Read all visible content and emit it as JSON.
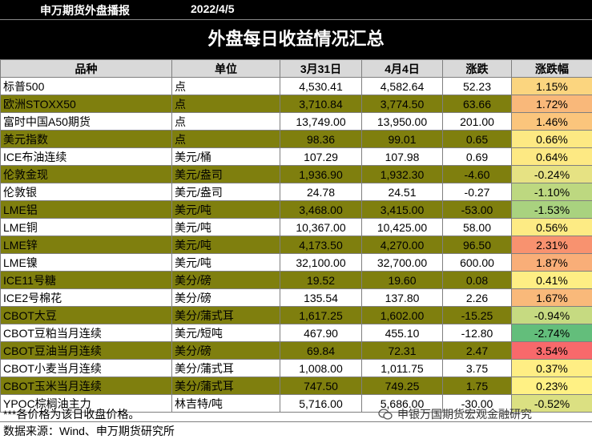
{
  "header": {
    "brand": "申万期货外盘播报",
    "date": "2022/4/5"
  },
  "title": "外盘每日收益情况汇总",
  "columns": [
    "品种",
    "单位",
    "3月31日",
    "4月4日",
    "涨跌",
    "涨跌幅"
  ],
  "rows": [
    {
      "name": "标普500",
      "unit": "点",
      "prev": "4,530.41",
      "curr": "4,582.64",
      "chg": "52.23",
      "pct": "1.15%",
      "color": "#fbd57f"
    },
    {
      "name": "欧洲STOXX50",
      "unit": "点",
      "prev": "3,710.84",
      "curr": "3,774.50",
      "chg": "63.66",
      "pct": "1.72%",
      "color": "#f9b87a"
    },
    {
      "name": "富时中国A50期货",
      "unit": "点",
      "prev": "13,749.00",
      "curr": "13,950.00",
      "chg": "201.00",
      "pct": "1.46%",
      "color": "#fbc57c"
    },
    {
      "name": "美元指数",
      "unit": "点",
      "prev": "98.36",
      "curr": "99.01",
      "chg": "0.65",
      "pct": "0.66%",
      "color": "#fde983"
    },
    {
      "name": "ICE布油连续",
      "unit": "美元/桶",
      "prev": "107.29",
      "curr": "107.98",
      "chg": "0.69",
      "pct": "0.64%",
      "color": "#fde983"
    },
    {
      "name": "伦敦金现",
      "unit": "美元/盎司",
      "prev": "1,936.90",
      "curr": "1,932.30",
      "chg": "-4.60",
      "pct": "-0.24%",
      "color": "#e6e283"
    },
    {
      "name": "伦敦银",
      "unit": "美元/盎司",
      "prev": "24.78",
      "curr": "24.51",
      "chg": "-0.27",
      "pct": "-1.10%",
      "color": "#bdd880"
    },
    {
      "name": "LME铝",
      "unit": "美元/吨",
      "prev": "3,468.00",
      "curr": "3,415.00",
      "chg": "-53.00",
      "pct": "-1.53%",
      "color": "#a9d27f"
    },
    {
      "name": "LME铜",
      "unit": "美元/吨",
      "prev": "10,367.00",
      "curr": "10,425.00",
      "chg": "58.00",
      "pct": "0.56%",
      "color": "#fdeb84"
    },
    {
      "name": "LME锌",
      "unit": "美元/吨",
      "prev": "4,173.50",
      "curr": "4,270.00",
      "chg": "96.50",
      "pct": "2.31%",
      "color": "#f8926f"
    },
    {
      "name": "LME镍",
      "unit": "美元/吨",
      "prev": "32,100.00",
      "curr": "32,700.00",
      "chg": "600.00",
      "pct": "1.87%",
      "color": "#f9ae78"
    },
    {
      "name": "ICE11号糖",
      "unit": "美分/磅",
      "prev": "19.52",
      "curr": "19.60",
      "chg": "0.08",
      "pct": "0.41%",
      "color": "#feee84"
    },
    {
      "name": "ICE2号棉花",
      "unit": "美分/磅",
      "prev": "135.54",
      "curr": "137.80",
      "chg": "2.26",
      "pct": "1.67%",
      "color": "#f9b97a"
    },
    {
      "name": "CBOT大豆",
      "unit": "美分/蒲式耳",
      "prev": "1,617.25",
      "curr": "1,602.00",
      "chg": "-15.25",
      "pct": "-0.94%",
      "color": "#c6da81"
    },
    {
      "name": "CBOT豆粕当月连续",
      "unit": "美元/短吨",
      "prev": "467.90",
      "curr": "455.10",
      "chg": "-12.80",
      "pct": "-2.74%",
      "color": "#63be7b"
    },
    {
      "name": "CBOT豆油当月连续",
      "unit": "美分/磅",
      "prev": "69.84",
      "curr": "72.31",
      "chg": "2.47",
      "pct": "3.54%",
      "color": "#f8696b"
    },
    {
      "name": "CBOT小麦当月连续",
      "unit": "美分/蒲式耳",
      "prev": "1,008.00",
      "curr": "1,011.75",
      "chg": "3.75",
      "pct": "0.37%",
      "color": "#ffee84"
    },
    {
      "name": "CBOT玉米当月连续",
      "unit": "美分/蒲式耳",
      "prev": "747.50",
      "curr": "749.25",
      "chg": "1.75",
      "pct": "0.23%",
      "color": "#fff184"
    },
    {
      "name": "YPOC棕榈油主力",
      "unit": "林吉特/吨",
      "prev": "5,716.00",
      "curr": "5,686.00",
      "chg": "-30.00",
      "pct": "-0.52%",
      "color": "#dbe082"
    }
  ],
  "footnote": "***各价格为该日收盘价格。",
  "source": "数据来源：Wind、申万期货研究所",
  "watermark": "申银万国期货宏观金融研究"
}
